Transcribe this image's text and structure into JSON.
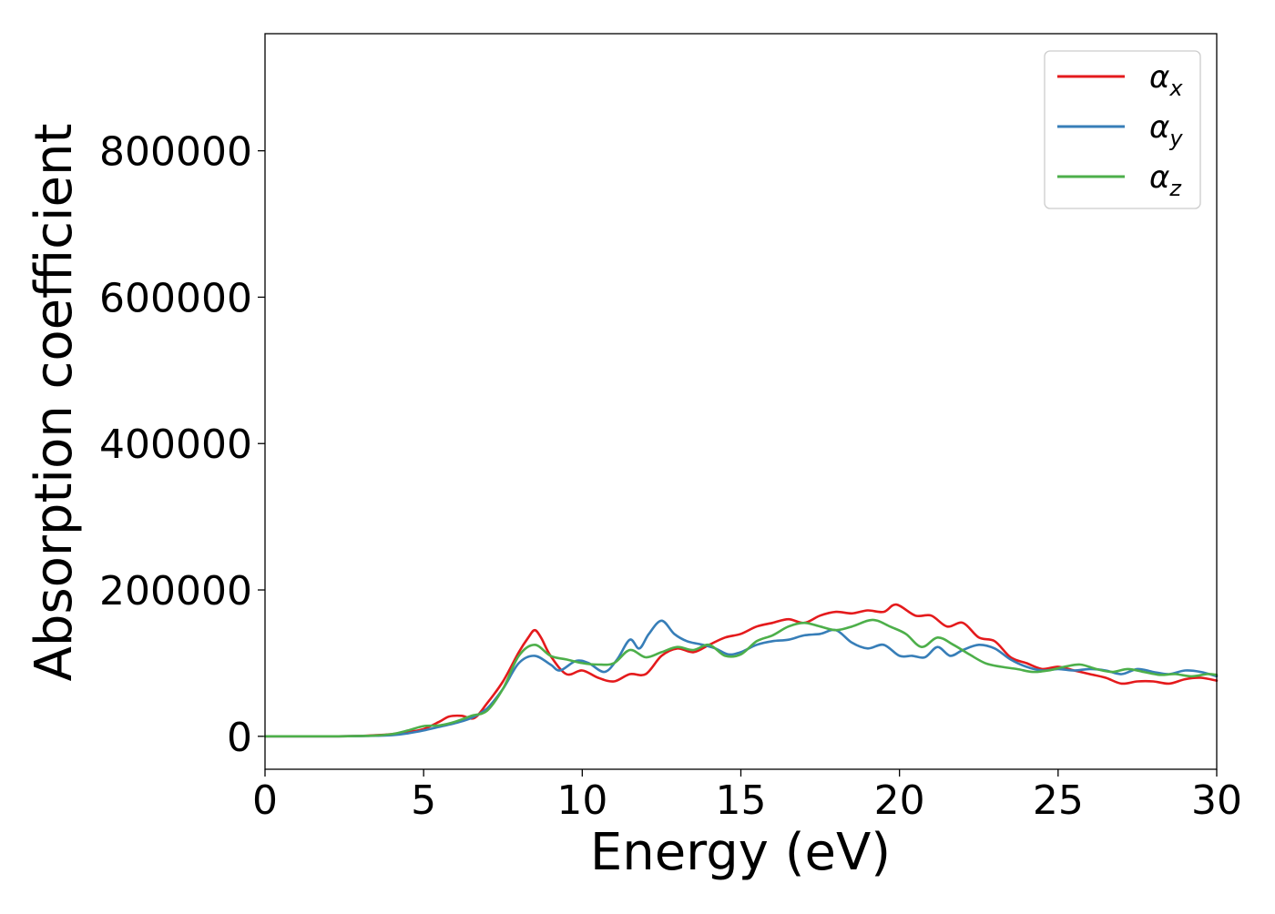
{
  "chart_data": {
    "type": "line",
    "title": "",
    "xlabel": "Energy (eV)",
    "ylabel": "Absorption coefficient",
    "xlim": [
      0,
      30
    ],
    "ylim": [
      -45000,
      960000
    ],
    "xticks": [
      0,
      5,
      10,
      15,
      20,
      25,
      30
    ],
    "yticks": [
      0,
      200000,
      400000,
      600000,
      800000
    ],
    "grid": false,
    "legend_position": "top-right",
    "series": [
      {
        "name": "α",
        "subscript": "x",
        "color": "#e41a1c",
        "x": [
          0,
          1,
          2,
          3,
          3.5,
          4,
          4.5,
          5,
          5.5,
          5.8,
          6.2,
          6.6,
          7,
          7.5,
          8,
          8.3,
          8.5,
          8.7,
          9,
          9.5,
          10,
          10.5,
          11,
          11.5,
          12,
          12.5,
          13,
          13.5,
          14,
          14.5,
          15,
          15.5,
          16,
          16.5,
          17,
          17.5,
          18,
          18.5,
          19,
          19.5,
          19.9,
          20.5,
          21,
          21.5,
          22,
          22.5,
          23,
          23.5,
          24,
          24.5,
          25,
          25.5,
          26,
          26.5,
          27,
          27.5,
          28,
          28.5,
          29,
          29.5,
          30
        ],
        "y": [
          0,
          0,
          0,
          500,
          1500,
          3000,
          6000,
          10000,
          20000,
          27000,
          28000,
          25000,
          45000,
          75000,
          115000,
          135000,
          145000,
          135000,
          110000,
          85000,
          90000,
          80000,
          75000,
          85000,
          85000,
          110000,
          120000,
          115000,
          125000,
          135000,
          140000,
          150000,
          155000,
          160000,
          155000,
          165000,
          170000,
          168000,
          172000,
          170000,
          180000,
          165000,
          165000,
          150000,
          155000,
          135000,
          130000,
          108000,
          100000,
          92000,
          95000,
          90000,
          85000,
          80000,
          72000,
          75000,
          75000,
          72000,
          78000,
          80000,
          76000
        ]
      },
      {
        "name": "α",
        "subscript": "y",
        "color": "#377eb8",
        "x": [
          0,
          1,
          2,
          3,
          3.5,
          4,
          4.5,
          5,
          5.5,
          6,
          6.5,
          7,
          7.5,
          8,
          8.5,
          9,
          9.3,
          9.8,
          10.2,
          10.7,
          11.1,
          11.5,
          11.8,
          12.1,
          12.5,
          12.9,
          13.3,
          13.8,
          14.2,
          14.6,
          15,
          15.5,
          16,
          16.5,
          17,
          17.5,
          18,
          18.5,
          19,
          19.5,
          20,
          20.4,
          20.8,
          21.2,
          21.6,
          22,
          22.5,
          23,
          23.5,
          24,
          24.5,
          25,
          25.5,
          26,
          26.5,
          27,
          27.5,
          28,
          28.5,
          29,
          29.5,
          30
        ],
        "y": [
          0,
          0,
          0,
          300,
          800,
          1500,
          4000,
          8000,
          13000,
          18000,
          25000,
          38000,
          65000,
          100000,
          110000,
          98000,
          90000,
          103000,
          100000,
          88000,
          105000,
          132000,
          120000,
          140000,
          158000,
          140000,
          130000,
          125000,
          120000,
          112000,
          115000,
          125000,
          130000,
          132000,
          138000,
          140000,
          145000,
          128000,
          120000,
          125000,
          110000,
          110000,
          108000,
          122000,
          110000,
          118000,
          125000,
          120000,
          105000,
          95000,
          90000,
          92000,
          90000,
          92000,
          90000,
          85000,
          92000,
          88000,
          85000,
          90000,
          88000,
          82000
        ]
      },
      {
        "name": "α",
        "subscript": "z",
        "color": "#4daf4a",
        "x": [
          0,
          1,
          2,
          3,
          3.5,
          4,
          4.5,
          5,
          5.5,
          6,
          6.5,
          7,
          7.5,
          8,
          8.5,
          9,
          9.5,
          10,
          10.5,
          11,
          11.5,
          12,
          12.5,
          13,
          13.5,
          14,
          14.5,
          15,
          15.5,
          16,
          16.5,
          17,
          17.5,
          18,
          18.5,
          19,
          19.3,
          19.7,
          20.2,
          20.7,
          21.2,
          21.7,
          22.2,
          22.7,
          23.2,
          23.7,
          24.2,
          24.7,
          25.2,
          25.7,
          26.2,
          26.7,
          27.2,
          27.7,
          28.2,
          28.7,
          29.2,
          29.7,
          30
        ],
        "y": [
          0,
          0,
          0,
          500,
          1200,
          3000,
          8000,
          14000,
          15000,
          20000,
          28000,
          35000,
          65000,
          110000,
          125000,
          110000,
          105000,
          100000,
          98000,
          100000,
          118000,
          108000,
          115000,
          122000,
          118000,
          125000,
          110000,
          112000,
          130000,
          138000,
          150000,
          155000,
          150000,
          145000,
          150000,
          158000,
          158000,
          150000,
          140000,
          122000,
          135000,
          125000,
          112000,
          100000,
          95000,
          92000,
          88000,
          90000,
          95000,
          98000,
          92000,
          88000,
          92000,
          88000,
          84000,
          85000,
          82000,
          85000,
          84000
        ]
      }
    ]
  }
}
